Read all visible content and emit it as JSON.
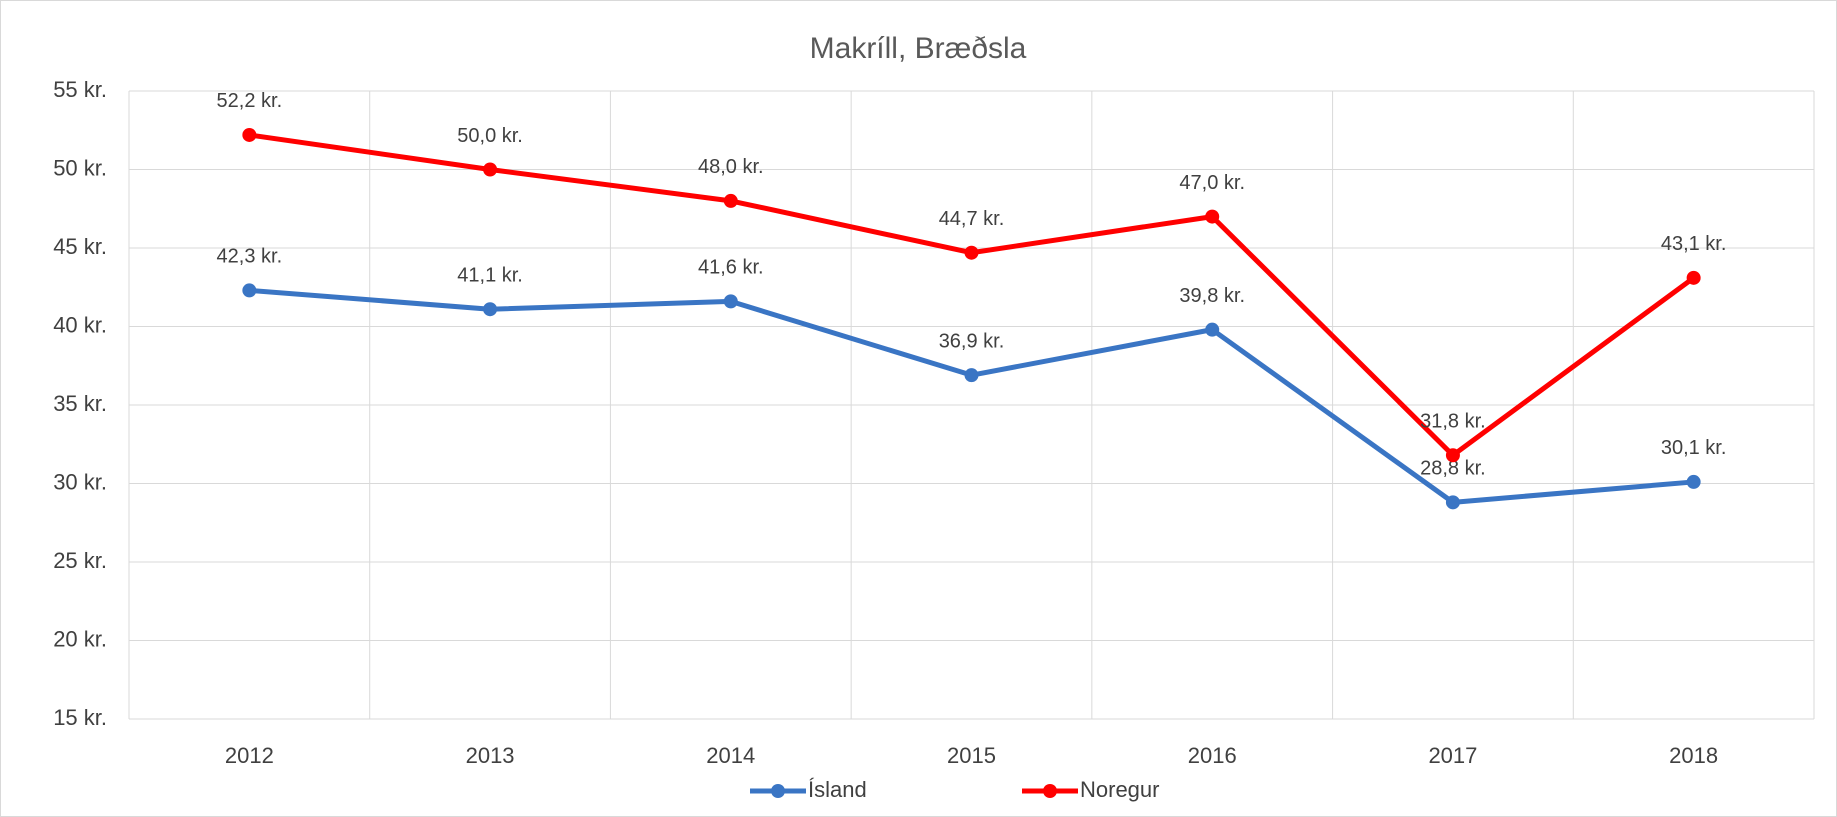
{
  "chart_data": {
    "type": "line",
    "title": "Makríll, Bræðsla",
    "categories": [
      "2012",
      "2013",
      "2014",
      "2015",
      "2016",
      "2017",
      "2018"
    ],
    "series": [
      {
        "name": "Ísland",
        "color": "#3a75c4",
        "values": [
          42.3,
          41.1,
          41.6,
          36.9,
          39.8,
          28.8,
          30.1
        ],
        "value_labels": [
          "42,3 kr.",
          "41,1 kr.",
          "41,6 kr.",
          "36,9 kr.",
          "39,8 kr.",
          "28,8 kr.",
          "30,1 kr."
        ]
      },
      {
        "name": "Noregur",
        "color": "#ff0000",
        "values": [
          52.2,
          50.0,
          48.0,
          44.7,
          47.0,
          31.8,
          43.1
        ],
        "value_labels": [
          "52,2 kr.",
          "50,0 kr.",
          "48,0 kr.",
          "44,7 kr.",
          "47,0 kr.",
          "31,8 kr.",
          "43,1 kr."
        ]
      }
    ],
    "ylim": [
      15,
      55
    ],
    "yticks": [
      {
        "value": 15,
        "label": "15 kr."
      },
      {
        "value": 20,
        "label": "20 kr."
      },
      {
        "value": 25,
        "label": "25 kr."
      },
      {
        "value": 30,
        "label": "30 kr."
      },
      {
        "value": 35,
        "label": "35 kr."
      },
      {
        "value": 40,
        "label": "40 kr."
      },
      {
        "value": 45,
        "label": "45 kr."
      },
      {
        "value": 50,
        "label": "50 kr."
      },
      {
        "value": 55,
        "label": "55 kr."
      }
    ],
    "grid": true,
    "legend": "bottom"
  }
}
